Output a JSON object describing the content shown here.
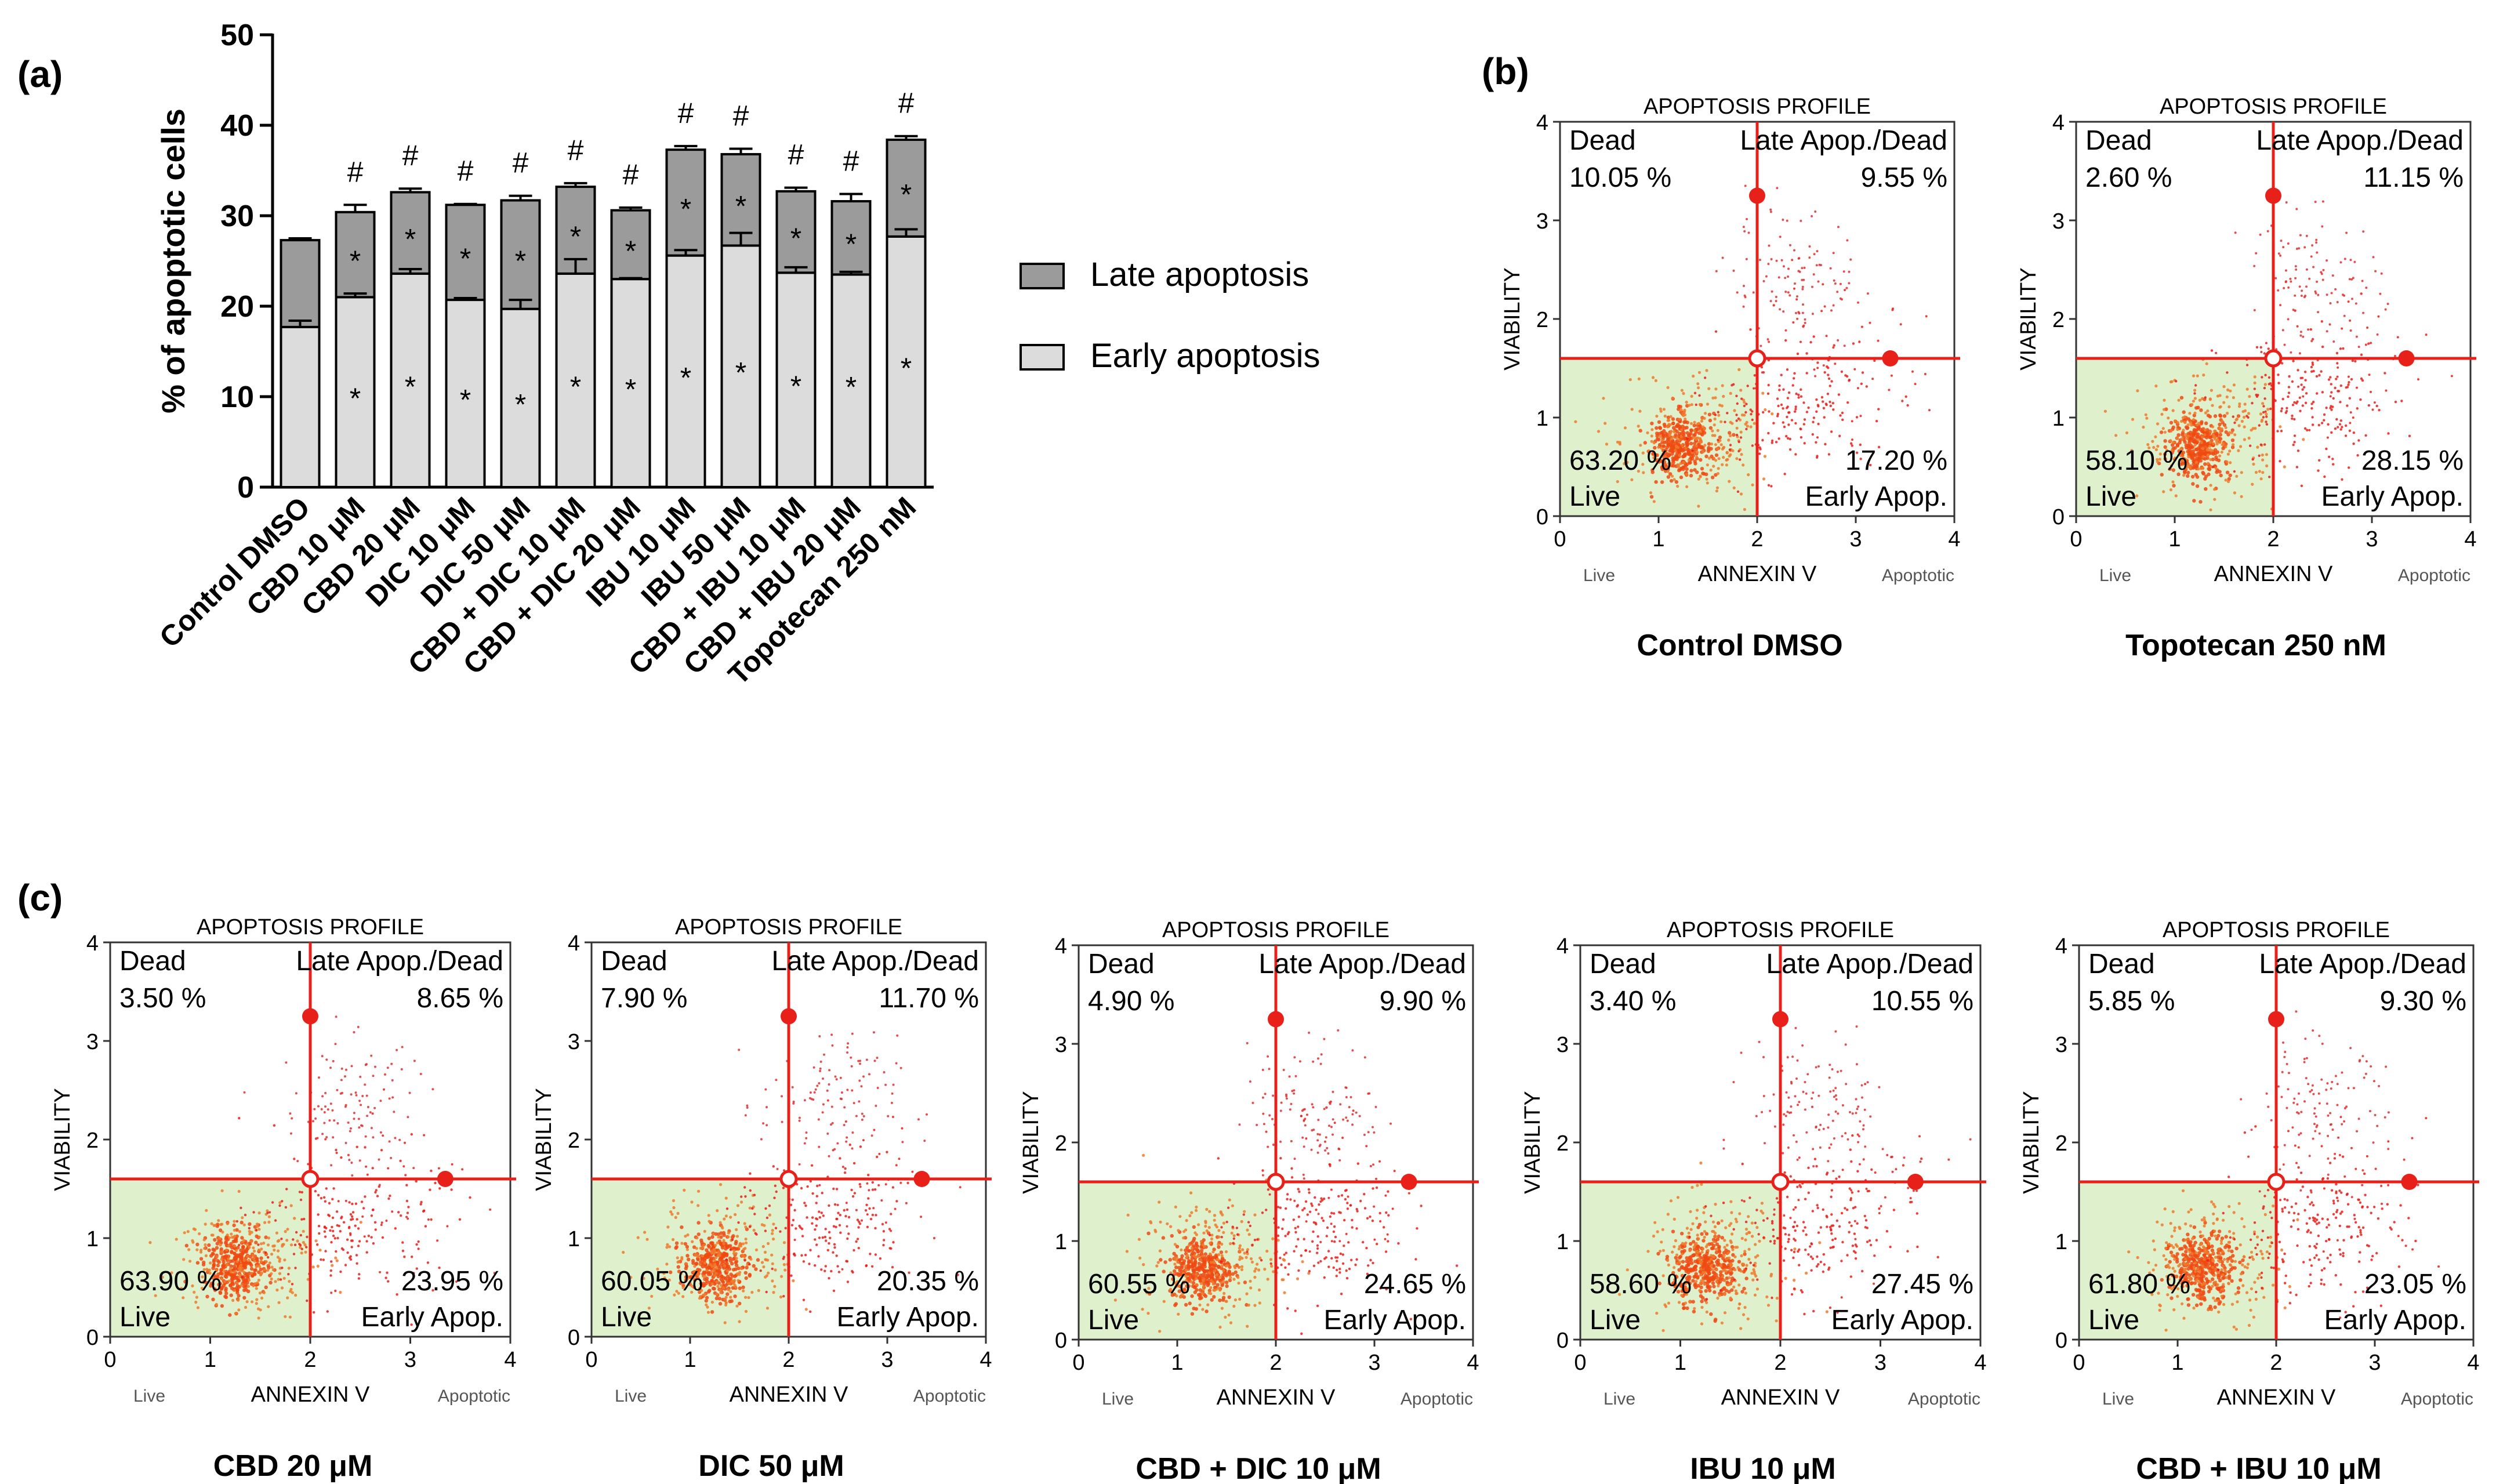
{
  "panel_labels": {
    "a": "(a)",
    "b": "(b)",
    "c": "(c)"
  },
  "colors": {
    "late": "#9b9b9b",
    "early": "#dcdcdc",
    "red": "#e8201a",
    "quadrant": "#dff0cc",
    "axis": "#000000"
  },
  "chart_data": [
    {
      "type": "bar",
      "stacked": true,
      "categories": [
        "Control DMSO",
        "CBD 10 μM",
        "CBD 20 μM",
        "DIC 10 μM",
        "DIC 50 μM",
        "CBD + DIC 10 μM",
        "CBD + DIC 20 μM",
        "IBU 10 μM",
        "IBU 50 μM",
        "CBD + IBU 10 μM",
        "CBD + IBU 20 μM",
        "Topotecan 250 nM"
      ],
      "series": [
        {
          "name": "Early apoptosis",
          "values": [
            17.7,
            21.0,
            23.6,
            20.7,
            19.7,
            23.6,
            23.0,
            25.6,
            26.7,
            23.7,
            23.5,
            27.7
          ],
          "errors": [
            0.7,
            0.4,
            0.5,
            0.2,
            1.0,
            1.6,
            0.1,
            0.6,
            1.4,
            0.6,
            0.3,
            0.8
          ]
        },
        {
          "name": "Late apoptosis",
          "values": [
            9.6,
            9.4,
            9.0,
            10.5,
            12.0,
            9.6,
            7.6,
            11.7,
            10.1,
            9.0,
            8.1,
            10.7
          ],
          "errors": [
            0.2,
            0.8,
            0.4,
            0.1,
            0.5,
            0.4,
            0.3,
            0.4,
            0.6,
            0.4,
            0.8,
            0.4
          ]
        }
      ],
      "early_marks": [
        "",
        "*",
        "*",
        "*",
        "*",
        "*",
        "*",
        "*",
        "*",
        "*",
        "*",
        "*"
      ],
      "late_marks": [
        "",
        "*",
        "*",
        "*",
        "*",
        "*",
        "*",
        "*",
        "*",
        "*",
        "*",
        "*"
      ],
      "hash_marks": [
        "",
        "#",
        "#",
        "#",
        "#",
        "#",
        "#",
        "#",
        "#",
        "#",
        "#",
        "#"
      ],
      "ylabel": "% of apoptotic cells",
      "ylim": [
        0,
        50
      ],
      "yticks": [
        "0",
        "10",
        "20",
        "30",
        "40",
        "50"
      ],
      "legend": [
        "Late apoptosis",
        "Early apoptosis"
      ],
      "legend_position": "right"
    },
    {
      "type": "scatter",
      "caption": "Control  DMSO",
      "title": "APOPTOSIS PROFILE",
      "xlabel": "ANNEXIN V",
      "ylabel": "VIABILITY",
      "xlim": [
        0,
        4
      ],
      "ylim": [
        0,
        4
      ],
      "xticks": [
        "0",
        "1",
        "2",
        "3",
        "4"
      ],
      "yticks": [
        "0",
        "1",
        "2",
        "3",
        "4"
      ],
      "x_end_labels": [
        "Live",
        "Apoptotic"
      ],
      "quadrants": {
        "dead": "Dead",
        "dead_pct": "10.05 %",
        "late": "Late Apop./Dead",
        "late_pct": "9.55 %",
        "live": "Live",
        "live_pct": "63.20 %",
        "early": "Early Apop.",
        "early_pct": "17.20 %"
      },
      "gate": {
        "x": 2.0,
        "y": 1.6
      },
      "handles": [
        [
          2.0,
          3.25
        ],
        [
          3.35,
          1.6
        ]
      ]
    },
    {
      "type": "scatter",
      "caption": "Topotecan 250 nM",
      "title": "APOPTOSIS PROFILE",
      "xlabel": "ANNEXIN V",
      "ylabel": "VIABILITY",
      "xlim": [
        0,
        4
      ],
      "ylim": [
        0,
        4
      ],
      "xticks": [
        "0",
        "1",
        "2",
        "3",
        "4"
      ],
      "yticks": [
        "0",
        "1",
        "2",
        "3",
        "4"
      ],
      "x_end_labels": [
        "Live",
        "Apoptotic"
      ],
      "quadrants": {
        "dead": "Dead",
        "dead_pct": "2.60 %",
        "late": "Late Apop./Dead",
        "late_pct": "11.15 %",
        "live": "Live",
        "live_pct": "58.10 %",
        "early": "Early Apop.",
        "early_pct": "28.15 %"
      },
      "gate": {
        "x": 2.0,
        "y": 1.6
      },
      "handles": [
        [
          2.0,
          3.25
        ],
        [
          3.35,
          1.6
        ]
      ]
    },
    {
      "type": "scatter",
      "caption": "CBD 20 μM",
      "title": "APOPTOSIS PROFILE",
      "xlabel": "ANNEXIN V",
      "ylabel": "VIABILITY",
      "xlim": [
        0,
        4
      ],
      "ylim": [
        0,
        4
      ],
      "xticks": [
        "0",
        "1",
        "2",
        "3",
        "4"
      ],
      "yticks": [
        "0",
        "1",
        "2",
        "3",
        "4"
      ],
      "x_end_labels": [
        "Live",
        "Apoptotic"
      ],
      "quadrants": {
        "dead": "Dead",
        "dead_pct": "3.50 %",
        "late": "Late Apop./Dead",
        "late_pct": "8.65 %",
        "live": "Live",
        "live_pct": "63.90 %",
        "early": "Early Apop.",
        "early_pct": "23.95 %"
      },
      "gate": {
        "x": 2.0,
        "y": 1.6
      },
      "handles": [
        [
          2.0,
          3.25
        ],
        [
          3.35,
          1.6
        ]
      ]
    },
    {
      "type": "scatter",
      "caption": "DIC 50 μM",
      "title": "APOPTOSIS PROFILE",
      "xlabel": "ANNEXIN V",
      "ylabel": "VIABILITY",
      "xlim": [
        0,
        4
      ],
      "ylim": [
        0,
        4
      ],
      "xticks": [
        "0",
        "1",
        "2",
        "3",
        "4"
      ],
      "yticks": [
        "0",
        "1",
        "2",
        "3",
        "4"
      ],
      "x_end_labels": [
        "Live",
        "Apoptotic"
      ],
      "quadrants": {
        "dead": "Dead",
        "dead_pct": "7.90 %",
        "late": "Late Apop./Dead",
        "late_pct": "11.70 %",
        "live": "Live",
        "live_pct": "60.05 %",
        "early": "Early Apop.",
        "early_pct": "20.35 %"
      },
      "gate": {
        "x": 2.0,
        "y": 1.6
      },
      "handles": [
        [
          2.0,
          3.25
        ],
        [
          3.35,
          1.6
        ]
      ]
    },
    {
      "type": "scatter",
      "caption": "CBD + DIC 10 μM",
      "title": "APOPTOSIS PROFILE",
      "xlabel": "ANNEXIN V",
      "ylabel": "VIABILITY",
      "xlim": [
        0,
        4
      ],
      "ylim": [
        0,
        4
      ],
      "xticks": [
        "0",
        "1",
        "2",
        "3",
        "4"
      ],
      "yticks": [
        "0",
        "1",
        "2",
        "3",
        "4"
      ],
      "x_end_labels": [
        "Live",
        "Apoptotic"
      ],
      "quadrants": {
        "dead": "Dead",
        "dead_pct": "4.90 %",
        "late": "Late Apop./Dead",
        "late_pct": "9.90 %",
        "live": "Live",
        "live_pct": "60.55 %",
        "early": "Early Apop.",
        "early_pct": "24.65 %"
      },
      "gate": {
        "x": 2.0,
        "y": 1.6
      },
      "handles": [
        [
          2.0,
          3.25
        ],
        [
          3.35,
          1.6
        ]
      ]
    },
    {
      "type": "scatter",
      "caption": "IBU 10 μM",
      "title": "APOPTOSIS PROFILE",
      "xlabel": "ANNEXIN V",
      "ylabel": "VIABILITY",
      "xlim": [
        0,
        4
      ],
      "ylim": [
        0,
        4
      ],
      "xticks": [
        "0",
        "1",
        "2",
        "3",
        "4"
      ],
      "yticks": [
        "0",
        "1",
        "2",
        "3",
        "4"
      ],
      "x_end_labels": [
        "Live",
        "Apoptotic"
      ],
      "quadrants": {
        "dead": "Dead",
        "dead_pct": "3.40 %",
        "late": "Late Apop./Dead",
        "late_pct": "10.55 %",
        "live": "Live",
        "live_pct": "58.60 %",
        "early": "Early Apop.",
        "early_pct": "27.45 %"
      },
      "gate": {
        "x": 2.0,
        "y": 1.6
      },
      "handles": [
        [
          2.0,
          3.25
        ],
        [
          3.35,
          1.6
        ]
      ]
    },
    {
      "type": "scatter",
      "caption": "CBD + IBU 10 μM",
      "title": "APOPTOSIS PROFILE",
      "xlabel": "ANNEXIN V",
      "ylabel": "VIABILITY",
      "xlim": [
        0,
        4
      ],
      "ylim": [
        0,
        4
      ],
      "xticks": [
        "0",
        "1",
        "2",
        "3",
        "4"
      ],
      "yticks": [
        "0",
        "1",
        "2",
        "3",
        "4"
      ],
      "x_end_labels": [
        "Live",
        "Apoptotic"
      ],
      "quadrants": {
        "dead": "Dead",
        "dead_pct": "5.85 %",
        "late": "Late Apop./Dead",
        "late_pct": "9.30 %",
        "live": "Live",
        "live_pct": "61.80 %",
        "early": "Early Apop.",
        "early_pct": "23.05 %"
      },
      "gate": {
        "x": 2.0,
        "y": 1.6
      },
      "handles": [
        [
          2.0,
          3.25
        ],
        [
          3.35,
          1.6
        ]
      ]
    }
  ]
}
